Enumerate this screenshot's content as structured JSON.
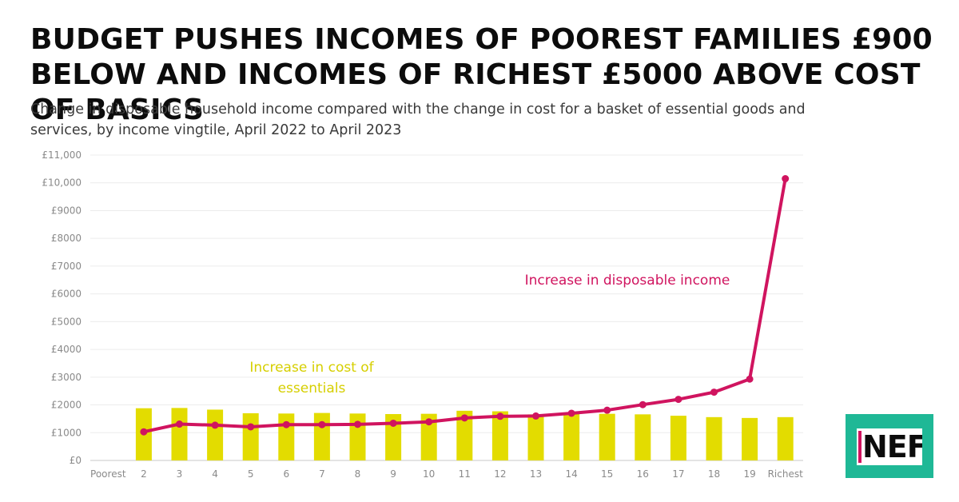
{
  "header": {
    "title": "BUDGET PUSHES INCOMES OF POOREST FAMILIES £900 BELOW AND INCOMES OF RICHEST £5000 ABOVE COST OF BASICS",
    "subtitle": "Change in disposable household income compared with the change in cost for a basket of essential goods and services, by income vingtile, April 2022 to April 2023"
  },
  "logo": {
    "text": "NEF",
    "background": "#1fb896",
    "accent": "#d0145f"
  },
  "chart_data": {
    "type": "bar",
    "categories": [
      "Poorest",
      "2",
      "3",
      "4",
      "5",
      "6",
      "7",
      "8",
      "9",
      "10",
      "11",
      "12",
      "13",
      "14",
      "15",
      "16",
      "17",
      "18",
      "19",
      "Richest"
    ],
    "series": [
      {
        "type": "bar",
        "color": "#e3dc00",
        "values": [
          null,
          1880,
          1890,
          1830,
          1700,
          1690,
          1710,
          1690,
          1670,
          1680,
          1790,
          1770,
          1660,
          1700,
          1680,
          1660,
          1610,
          1560,
          1530,
          1560
        ]
      },
      {
        "type": "line",
        "color": "#d0145f",
        "values": [
          null,
          1030,
          1310,
          1270,
          1210,
          1290,
          1290,
          1300,
          1340,
          1390,
          1530,
          1590,
          1600,
          1700,
          1810,
          2010,
          2200,
          2460,
          2930,
          10150
        ]
      }
    ],
    "y_ticks": [
      "£0",
      "£1000",
      "£2000",
      "£3000",
      "£4000",
      "£5000",
      "£6000",
      "£7000",
      "£8000",
      "£9000",
      "£10,000",
      "£11,000"
    ],
    "ylim": [
      0,
      11000
    ],
    "grid": true,
    "annotations": [
      {
        "lines": [
          "Increase in disposable income"
        ],
        "color": "#d0145f"
      },
      {
        "lines": [
          "Increase in cost of",
          "essentials"
        ],
        "color": "#d6cf00"
      }
    ]
  }
}
